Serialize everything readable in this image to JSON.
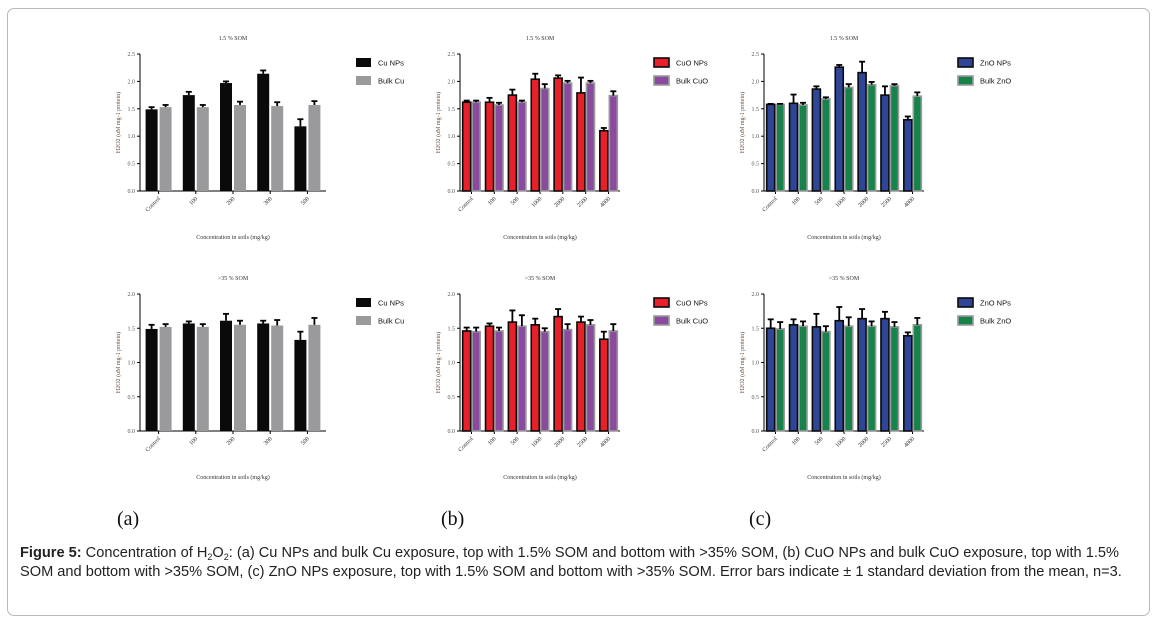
{
  "figure": {
    "panel_labels": [
      "(a)",
      "(b)",
      "(c)"
    ],
    "caption": {
      "label": "Figure 5:",
      "text_before_sub": " Concentration of H",
      "sub1": "2",
      "mid": "O",
      "sub2": "2",
      "text_after": ": (a) Cu NPs and bulk Cu exposure, top with 1.5% SOM and bottom with >35% SOM, (b) CuO NPs and bulk CuO exposure, top with 1.5% SOM and bottom with >35% SOM, (c) ZnO NPs exposure, top with 1.5% SOM and bottom with >35% SOM. Error bars indicate ± 1 standard deviation from the mean, n=3."
    }
  },
  "chart_data": [
    {
      "id": "a-top",
      "type": "bar",
      "title": "1.5 % SOM",
      "xlabel": "Concentration in soils (mg/kg)",
      "ylabel": "H2O2 (uM mg-1 protein)",
      "ylim": [
        0,
        2.5
      ],
      "yticks": [
        "0.0",
        "0.5",
        "1.0",
        "1.5",
        "2.0",
        "2.5"
      ],
      "categories": [
        "Control",
        "100",
        "200",
        "300",
        "500"
      ],
      "legend_position": "right",
      "series": [
        {
          "name": "Cu NPs",
          "color": "#0a0a0a",
          "outline": "#0a0a0a",
          "values": [
            1.49,
            1.75,
            1.97,
            2.14,
            1.18
          ],
          "errors": [
            0.04,
            0.06,
            0.03,
            0.06,
            0.13
          ]
        },
        {
          "name": "Bulk Cu",
          "color": "#9a9a9c",
          "outline": "#9a9a9c",
          "values": [
            1.53,
            1.53,
            1.57,
            1.55,
            1.57
          ],
          "errors": [
            0.04,
            0.04,
            0.06,
            0.07,
            0.07
          ]
        }
      ]
    },
    {
      "id": "b-top",
      "type": "bar",
      "title": "1.5 % SOM",
      "xlabel": "Concentration in soils (mg/kg)",
      "ylabel": "H2O2 (uM mg-1 protein)",
      "ylim": [
        0,
        2.5
      ],
      "yticks": [
        "0.0",
        "0.5",
        "1.0",
        "1.5",
        "2.0",
        "2.5"
      ],
      "categories": [
        "Control",
        "100",
        "500",
        "1000",
        "2000",
        "2500",
        "4000"
      ],
      "legend_position": "right",
      "series": [
        {
          "name": "CuO NPs",
          "color": "#e8202a",
          "outline": "#0a0a0a",
          "values": [
            1.62,
            1.62,
            1.75,
            2.04,
            2.06,
            1.79,
            1.1
          ],
          "errors": [
            0.03,
            0.08,
            0.1,
            0.1,
            0.05,
            0.28,
            0.05
          ]
        },
        {
          "name": "Bulk CuO",
          "color": "#8a4a9e",
          "outline": "#9a9a9c",
          "values": [
            1.62,
            1.57,
            1.62,
            1.87,
            1.97,
            1.97,
            1.74
          ],
          "errors": [
            0.03,
            0.04,
            0.03,
            0.08,
            0.04,
            0.04,
            0.08
          ]
        }
      ]
    },
    {
      "id": "c-top",
      "type": "bar",
      "title": "1.5 % SOM",
      "xlabel": "Concentration in soils (mg/kg)",
      "ylabel": "H2O2 (uM mg-1 protein)",
      "ylim": [
        0,
        2.5
      ],
      "yticks": [
        "0.0",
        "0.5",
        "1.0",
        "1.5",
        "2.0",
        "2.5"
      ],
      "categories": [
        "Control",
        "100",
        "500",
        "1000",
        "2000",
        "2500",
        "4000"
      ],
      "legend_position": "right",
      "series": [
        {
          "name": "ZnO NPs",
          "color": "#2f4696",
          "outline": "#0a0a0a",
          "values": [
            1.58,
            1.6,
            1.86,
            2.26,
            2.16,
            1.75,
            1.3
          ],
          "errors": [
            0.01,
            0.16,
            0.05,
            0.04,
            0.2,
            0.16,
            0.06
          ]
        },
        {
          "name": "Bulk ZnO",
          "color": "#17834a",
          "outline": "#9a9a9c",
          "values": [
            1.58,
            1.57,
            1.68,
            1.89,
            1.94,
            1.92,
            1.73
          ],
          "errors": [
            0.01,
            0.04,
            0.03,
            0.06,
            0.05,
            0.03,
            0.07
          ]
        }
      ]
    },
    {
      "id": "a-bottom",
      "type": "bar",
      "title": ">35 % SOM",
      "xlabel": "Concentration in soils (mg/kg)",
      "ylabel": "H2O2 (uM mg-1 protein)",
      "ylim": [
        0,
        2.0
      ],
      "yticks": [
        "0.0",
        "0.5",
        "1.0",
        "1.5",
        "2.0"
      ],
      "categories": [
        "Control",
        "100",
        "200",
        "300",
        "500"
      ],
      "legend_position": "right",
      "series": [
        {
          "name": "Cu NPs",
          "color": "#0a0a0a",
          "outline": "#0a0a0a",
          "values": [
            1.49,
            1.57,
            1.61,
            1.57,
            1.33
          ],
          "errors": [
            0.06,
            0.03,
            0.1,
            0.04,
            0.12
          ]
        },
        {
          "name": "Bulk Cu",
          "color": "#9a9a9c",
          "outline": "#9a9a9c",
          "values": [
            1.52,
            1.52,
            1.55,
            1.54,
            1.55
          ],
          "errors": [
            0.04,
            0.04,
            0.06,
            0.08,
            0.1
          ]
        }
      ]
    },
    {
      "id": "b-bottom",
      "type": "bar",
      "title": ">35 % SOM",
      "xlabel": "Concentration in soils (mg/kg)",
      "ylabel": "H2O2 (uM mg-1 protein)",
      "ylim": [
        0,
        2.0
      ],
      "yticks": [
        "0.0",
        "0.5",
        "1.0",
        "1.5",
        "2.0"
      ],
      "categories": [
        "Control",
        "100",
        "500",
        "1000",
        "2000",
        "2500",
        "4000"
      ],
      "legend_position": "right",
      "series": [
        {
          "name": "CuO NPs",
          "color": "#e8202a",
          "outline": "#0a0a0a",
          "values": [
            1.46,
            1.53,
            1.59,
            1.55,
            1.67,
            1.59,
            1.34
          ],
          "errors": [
            0.05,
            0.04,
            0.17,
            0.09,
            0.11,
            0.08,
            0.11
          ]
        },
        {
          "name": "Bulk CuO",
          "color": "#8a4a9e",
          "outline": "#9a9a9c",
          "values": [
            1.45,
            1.46,
            1.53,
            1.45,
            1.48,
            1.55,
            1.46
          ],
          "errors": [
            0.06,
            0.05,
            0.16,
            0.05,
            0.08,
            0.07,
            0.1
          ]
        }
      ]
    },
    {
      "id": "c-bottom",
      "type": "bar",
      "title": ">35 % SOM",
      "xlabel": "Concentration in soils (mg/kg)",
      "ylabel": "H2O2 (uM mg-1 protein)",
      "ylim": [
        0,
        2.0
      ],
      "yticks": [
        "0.0",
        "0.5",
        "1.0",
        "1.5",
        "2.0"
      ],
      "categories": [
        "Control",
        "100",
        "500",
        "1000",
        "2000",
        "2500",
        "4000"
      ],
      "legend_position": "right",
      "series": [
        {
          "name": "ZnO NPs",
          "color": "#2f4696",
          "outline": "#0a0a0a",
          "values": [
            1.5,
            1.55,
            1.52,
            1.61,
            1.64,
            1.64,
            1.39
          ],
          "errors": [
            0.13,
            0.08,
            0.19,
            0.2,
            0.14,
            0.1,
            0.05
          ]
        },
        {
          "name": "Bulk ZnO",
          "color": "#17834a",
          "outline": "#9a9a9c",
          "values": [
            1.49,
            1.53,
            1.45,
            1.53,
            1.53,
            1.52,
            1.55
          ],
          "errors": [
            0.1,
            0.07,
            0.08,
            0.13,
            0.07,
            0.07,
            0.1
          ]
        }
      ]
    }
  ]
}
